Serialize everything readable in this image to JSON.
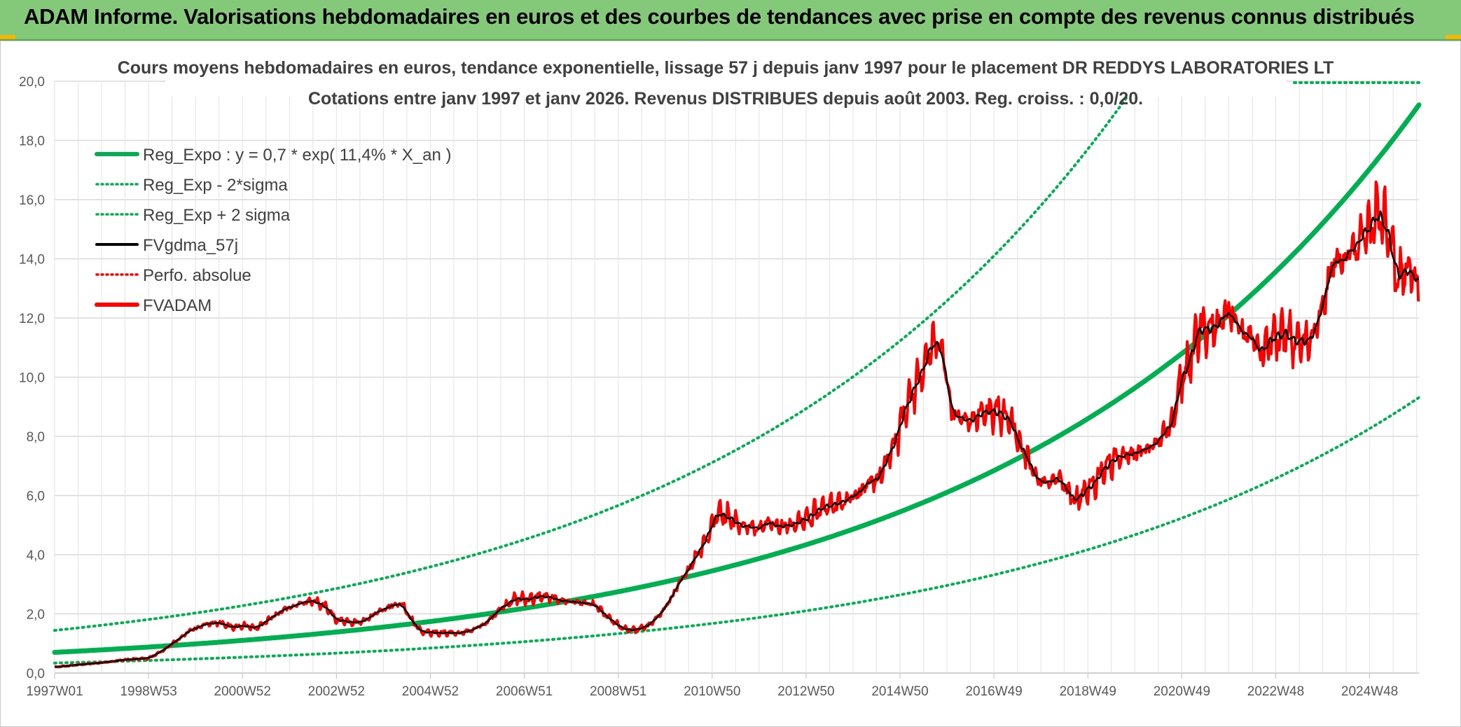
{
  "banner": {
    "title": "ADAM Informe. Valorisations hebdomadaires en euros et des courbes de tendances avec prise en compte des revenus connus distribués"
  },
  "colors": {
    "banner_bg": "#84c97a",
    "trend": "#00b050",
    "price": "#ff0000",
    "smooth": "#000000",
    "grid": "#d9d9d9",
    "accent": "#f2b705"
  },
  "chart_data": {
    "type": "line",
    "title_lines": [
      "Cours moyens hebdomadaires en euros, tendance exponentielle, lissage 57 j depuis janv 1997 pour le placement DR REDDYS LABORATORIES LT",
      "Cotations entre janv 1997 et janv 2026. Revenus DISTRIBUES depuis août 2003. Reg. croiss. : 0,0/20."
    ],
    "ylim": [
      0,
      20
    ],
    "yticks": [
      "0,0",
      "2,0",
      "4,0",
      "6,0",
      "8,0",
      "10,0",
      "12,0",
      "14,0",
      "16,0",
      "18,0",
      "20,0"
    ],
    "xlim": [
      1997.0,
      2026.05
    ],
    "xticks": [
      {
        "label": "1997W01",
        "x": 1997.0
      },
      {
        "label": "1998W53",
        "x": 1999.0
      },
      {
        "label": "2000W52",
        "x": 2001.0
      },
      {
        "label": "2002W52",
        "x": 2003.0
      },
      {
        "label": "2004W52",
        "x": 2005.0
      },
      {
        "label": "2006W51",
        "x": 2007.0
      },
      {
        "label": "2008W51",
        "x": 2009.0
      },
      {
        "label": "2010W50",
        "x": 2011.0
      },
      {
        "label": "2012W50",
        "x": 2013.0
      },
      {
        "label": "2014W50",
        "x": 2015.0
      },
      {
        "label": "2016W49",
        "x": 2017.0
      },
      {
        "label": "2018W49",
        "x": 2019.0
      },
      {
        "label": "2020W49",
        "x": 2021.0
      },
      {
        "label": "2022W48",
        "x": 2023.0
      },
      {
        "label": "2024W48",
        "x": 2025.0
      }
    ],
    "grid": true,
    "legend_position": "top-left",
    "series": [
      {
        "name": "Reg_Expo : y = 0,7 * exp( 11,4% *  X_an )",
        "style": "thick-solid",
        "color": "#00b050",
        "model": {
          "a": 0.7,
          "rate": 0.114,
          "mult": 1.0
        }
      },
      {
        "name": "Reg_Exp - 2*sigma",
        "style": "dotted",
        "color": "#00b050",
        "model": {
          "a": 0.7,
          "rate": 0.114,
          "mult": 0.485
        }
      },
      {
        "name": "Reg_Exp + 2 sigma",
        "style": "dotted",
        "color": "#00b050",
        "model": {
          "a": 0.7,
          "rate": 0.114,
          "mult": 2.06
        }
      },
      {
        "name": "FVgdma_57j",
        "style": "solid",
        "color": "#000000"
      },
      {
        "name": "Perfo. absolue",
        "style": "dotted",
        "color": "#ff0000"
      },
      {
        "name": "FVADAM",
        "style": "thick-solid",
        "color": "#ff0000"
      }
    ],
    "price_points": [
      [
        1997.0,
        0.2
      ],
      [
        1997.5,
        0.28
      ],
      [
        1998.0,
        0.35
      ],
      [
        1998.5,
        0.45
      ],
      [
        1999.0,
        0.5
      ],
      [
        1999.3,
        0.75
      ],
      [
        1999.6,
        1.1
      ],
      [
        1999.9,
        1.45
      ],
      [
        2000.2,
        1.65
      ],
      [
        2000.5,
        1.7
      ],
      [
        2000.8,
        1.55
      ],
      [
        2001.1,
        1.6
      ],
      [
        2001.3,
        1.5
      ],
      [
        2001.6,
        1.85
      ],
      [
        2001.9,
        2.15
      ],
      [
        2002.2,
        2.35
      ],
      [
        2002.5,
        2.45
      ],
      [
        2002.8,
        2.2
      ],
      [
        2003.0,
        1.8
      ],
      [
        2003.3,
        1.7
      ],
      [
        2003.6,
        1.75
      ],
      [
        2003.9,
        2.1
      ],
      [
        2004.2,
        2.3
      ],
      [
        2004.4,
        2.35
      ],
      [
        2004.6,
        1.8
      ],
      [
        2004.8,
        1.4
      ],
      [
        2005.2,
        1.35
      ],
      [
        2005.6,
        1.35
      ],
      [
        2005.9,
        1.45
      ],
      [
        2006.2,
        1.7
      ],
      [
        2006.5,
        2.2
      ],
      [
        2006.8,
        2.5
      ],
      [
        2007.1,
        2.5
      ],
      [
        2007.4,
        2.6
      ],
      [
        2007.8,
        2.45
      ],
      [
        2008.1,
        2.4
      ],
      [
        2008.5,
        2.3
      ],
      [
        2008.8,
        1.85
      ],
      [
        2009.1,
        1.5
      ],
      [
        2009.4,
        1.45
      ],
      [
        2009.7,
        1.65
      ],
      [
        2010.0,
        2.2
      ],
      [
        2010.3,
        3.0
      ],
      [
        2010.6,
        3.8
      ],
      [
        2010.9,
        4.6
      ],
      [
        2011.1,
        5.4
      ],
      [
        2011.3,
        5.35
      ],
      [
        2011.6,
        5.0
      ],
      [
        2011.9,
        4.9
      ],
      [
        2012.2,
        5.1
      ],
      [
        2012.5,
        4.95
      ],
      [
        2012.8,
        5.05
      ],
      [
        2013.1,
        5.3
      ],
      [
        2013.4,
        5.6
      ],
      [
        2013.7,
        5.75
      ],
      [
        2014.0,
        6.0
      ],
      [
        2014.3,
        6.3
      ],
      [
        2014.6,
        6.7
      ],
      [
        2014.9,
        7.8
      ],
      [
        2015.2,
        9.3
      ],
      [
        2015.5,
        10.2
      ],
      [
        2015.7,
        11.3
      ],
      [
        2015.9,
        10.9
      ],
      [
        2016.1,
        8.8
      ],
      [
        2016.4,
        8.5
      ],
      [
        2016.7,
        8.7
      ],
      [
        2017.0,
        8.9
      ],
      [
        2017.3,
        8.7
      ],
      [
        2017.6,
        7.6
      ],
      [
        2017.9,
        6.6
      ],
      [
        2018.1,
        6.4
      ],
      [
        2018.4,
        6.6
      ],
      [
        2018.7,
        5.8
      ],
      [
        2019.0,
        6.2
      ],
      [
        2019.3,
        6.8
      ],
      [
        2019.6,
        7.3
      ],
      [
        2019.9,
        7.4
      ],
      [
        2020.2,
        7.5
      ],
      [
        2020.5,
        7.8
      ],
      [
        2020.8,
        8.5
      ],
      [
        2021.0,
        10.0
      ],
      [
        2021.2,
        10.7
      ],
      [
        2021.4,
        11.8
      ],
      [
        2021.7,
        11.6
      ],
      [
        2022.0,
        12.2
      ],
      [
        2022.2,
        11.6
      ],
      [
        2022.5,
        11.4
      ],
      [
        2022.7,
        10.8
      ],
      [
        2022.9,
        11.3
      ],
      [
        2023.2,
        11.5
      ],
      [
        2023.5,
        11.1
      ],
      [
        2023.8,
        11.3
      ],
      [
        2024.0,
        12.3
      ],
      [
        2024.2,
        13.8
      ],
      [
        2024.5,
        14.1
      ],
      [
        2024.8,
        14.5
      ],
      [
        2025.1,
        15.3
      ],
      [
        2025.3,
        15.5
      ],
      [
        2025.45,
        14.6
      ],
      [
        2025.6,
        13.2
      ],
      [
        2025.8,
        13.8
      ],
      [
        2026.0,
        13.2
      ],
      [
        2026.05,
        12.6
      ]
    ]
  }
}
